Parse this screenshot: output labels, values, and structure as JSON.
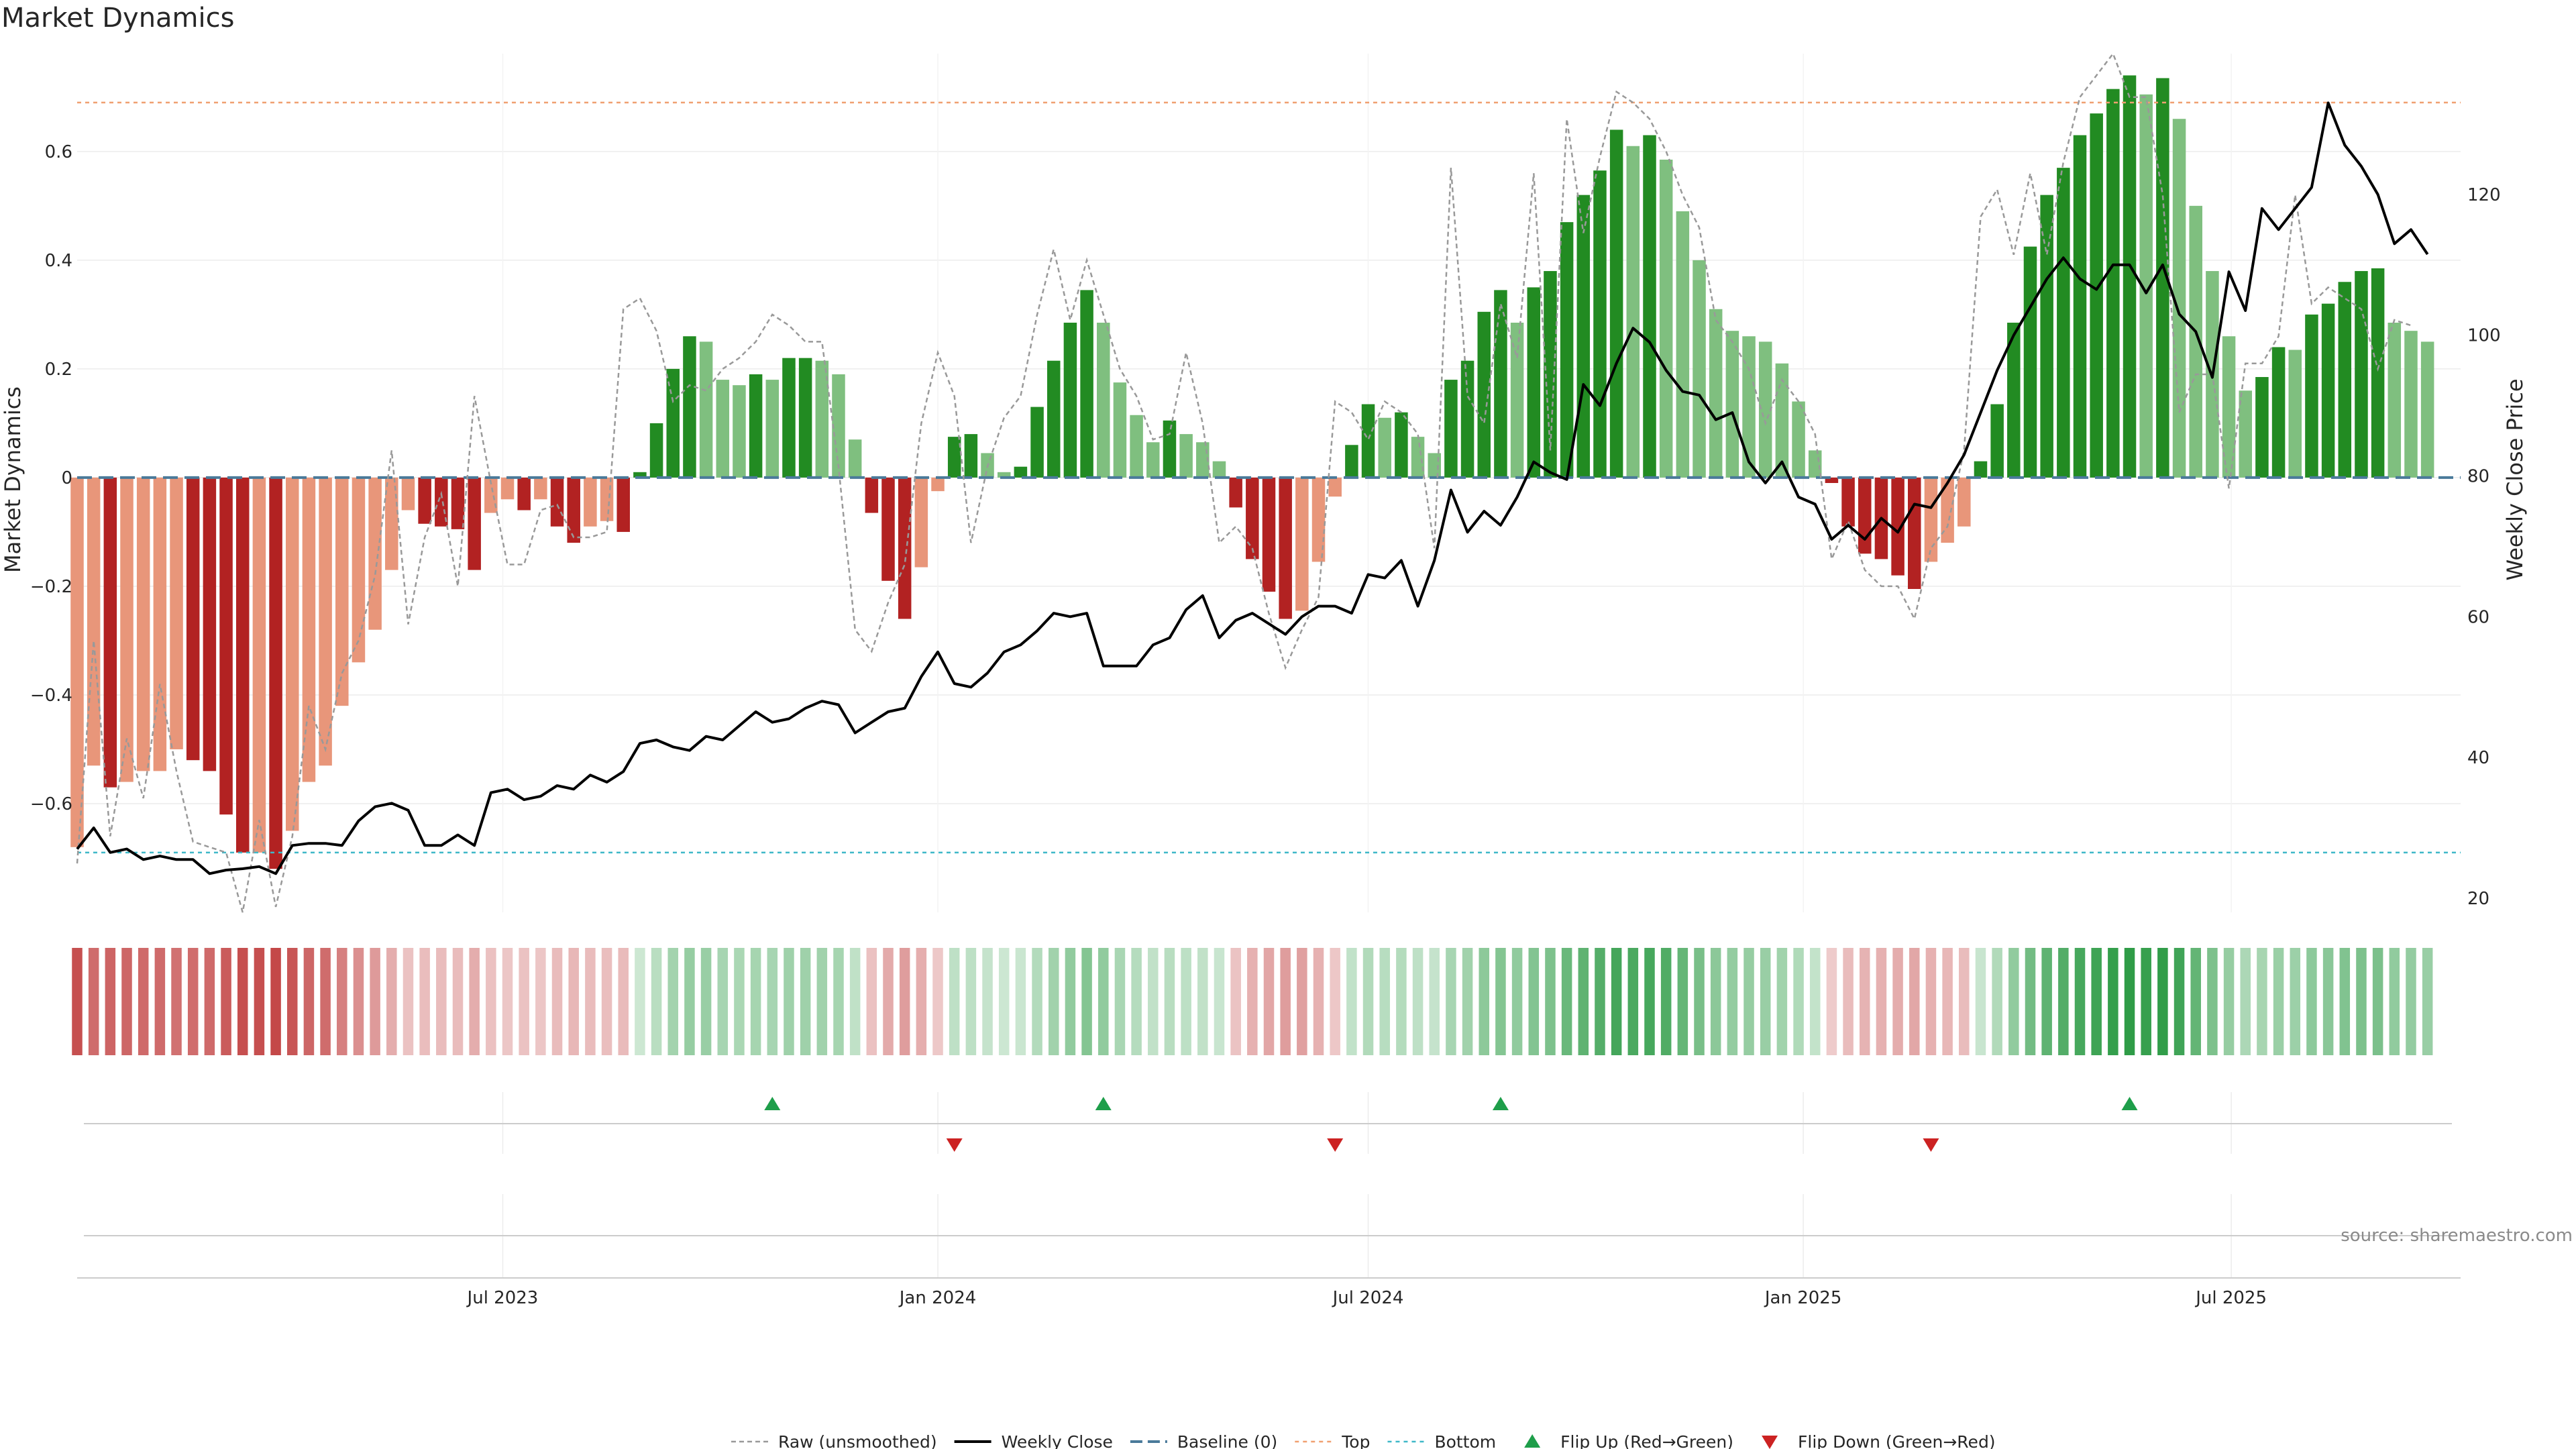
{
  "title": "Market Dynamics",
  "source": "source: sharemaestro.com",
  "colors": {
    "strong_green": "#228b22",
    "light_green": "#7fbf7f",
    "strong_red": "#b22222",
    "light_red": "#e8967a",
    "raw": "#999999",
    "close": "#000000",
    "baseline": "#4a7a9a",
    "top": "#f0a070",
    "bottom": "#3fb8c8",
    "flip_up": "#1e9e4a",
    "flip_down": "#cc2222"
  },
  "chart_data": {
    "type": "bar",
    "title": "Market Dynamics",
    "ylabel_left": "Market Dynamics",
    "ylabel_right": "Weekly Close Price",
    "x_start": "2023-01-02",
    "x_end": "2025-10-06",
    "ylim_left": [
      -0.8,
      0.78
    ],
    "ylim_right": [
      18,
      140
    ],
    "yticks_left": [
      -0.6,
      -0.4,
      -0.2,
      0,
      0.2,
      0.4,
      0.6
    ],
    "yticks_left_labels": [
      "−0.6",
      "−0.4",
      "−0.2",
      "0",
      "0.2",
      "0.4",
      "0.6"
    ],
    "yticks_right": [
      20,
      40,
      60,
      80,
      100,
      120
    ],
    "xticks": [
      {
        "date": "2023-07-01",
        "label": "Jul 2023"
      },
      {
        "date": "2024-01-01",
        "label": "Jan 2024"
      },
      {
        "date": "2024-07-01",
        "label": "Jul 2024"
      },
      {
        "date": "2025-01-01",
        "label": "Jan 2025"
      },
      {
        "date": "2025-07-01",
        "label": "Jul 2025"
      }
    ],
    "top_level": 0.69,
    "bottom_level": -0.69,
    "bar_values": [
      -0.68,
      -0.53,
      -0.57,
      -0.56,
      -0.54,
      -0.54,
      -0.5,
      -0.52,
      -0.54,
      -0.62,
      -0.69,
      -0.69,
      -0.72,
      -0.65,
      -0.56,
      -0.53,
      -0.42,
      -0.34,
      -0.28,
      -0.17,
      -0.06,
      -0.085,
      -0.09,
      -0.095,
      -0.17,
      -0.065,
      -0.04,
      -0.06,
      -0.04,
      -0.09,
      -0.12,
      -0.09,
      -0.08,
      -0.1,
      0.01,
      0.1,
      0.2,
      0.26,
      0.25,
      0.18,
      0.17,
      0.19,
      0.18,
      0.22,
      0.22,
      0.215,
      0.19,
      0.07,
      -0.065,
      -0.19,
      -0.26,
      -0.165,
      -0.025,
      0.075,
      0.08,
      0.045,
      0.01,
      0.02,
      0.13,
      0.215,
      0.285,
      0.345,
      0.285,
      0.175,
      0.115,
      0.065,
      0.105,
      0.08,
      0.065,
      0.03,
      -0.055,
      -0.15,
      -0.21,
      -0.26,
      -0.245,
      -0.155,
      -0.035,
      0.06,
      0.135,
      0.11,
      0.12,
      0.075,
      0.045,
      0.18,
      0.215,
      0.305,
      0.345,
      0.285,
      0.35,
      0.38,
      0.47,
      0.52,
      0.565,
      0.64,
      0.61,
      0.63,
      0.585,
      0.49,
      0.4,
      0.31,
      0.27,
      0.26,
      0.25,
      0.21,
      0.14,
      0.05,
      -0.01,
      -0.09,
      -0.14,
      -0.15,
      -0.18,
      -0.205,
      -0.155,
      -0.12,
      -0.09,
      0.03,
      0.135,
      0.285,
      0.425,
      0.52,
      0.57,
      0.63,
      0.67,
      0.715,
      0.74,
      0.705,
      0.735,
      0.66,
      0.5,
      0.38,
      0.26,
      0.16,
      0.185,
      0.24,
      0.235,
      0.3,
      0.32,
      0.36,
      0.38,
      0.385,
      0.285,
      0.27,
      0.25
    ],
    "raw_values": [
      -0.71,
      -0.3,
      -0.66,
      -0.48,
      -0.59,
      -0.38,
      -0.54,
      -0.67,
      -0.68,
      -0.69,
      -0.8,
      -0.63,
      -0.79,
      -0.66,
      -0.42,
      -0.5,
      -0.36,
      -0.3,
      -0.18,
      0.05,
      -0.27,
      -0.11,
      -0.03,
      -0.2,
      0.15,
      -0.01,
      -0.16,
      -0.16,
      -0.06,
      -0.05,
      -0.11,
      -0.11,
      -0.1,
      0.31,
      0.33,
      0.27,
      0.14,
      0.17,
      0.16,
      0.2,
      0.22,
      0.25,
      0.3,
      0.28,
      0.25,
      0.25,
      0.02,
      -0.28,
      -0.32,
      -0.23,
      -0.16,
      0.1,
      0.23,
      0.15,
      -0.12,
      0.02,
      0.11,
      0.15,
      0.3,
      0.42,
      0.29,
      0.4,
      0.3,
      0.2,
      0.15,
      0.07,
      0.08,
      0.23,
      0.1,
      -0.12,
      -0.09,
      -0.13,
      -0.25,
      -0.35,
      -0.28,
      -0.22,
      0.14,
      0.12,
      0.07,
      0.14,
      0.12,
      0.08,
      -0.13,
      0.57,
      0.15,
      0.1,
      0.32,
      0.22,
      0.56,
      0.05,
      0.66,
      0.45,
      0.59,
      0.71,
      0.69,
      0.66,
      0.6,
      0.52,
      0.46,
      0.29,
      0.25,
      0.2,
      0.1,
      0.18,
      0.14,
      0.08,
      -0.15,
      -0.08,
      -0.17,
      -0.2,
      -0.2,
      -0.26,
      -0.13,
      -0.09,
      0.05,
      0.48,
      0.53,
      0.41,
      0.56,
      0.41,
      0.58,
      0.7,
      0.74,
      0.78,
      0.7,
      0.7,
      0.52,
      0.12,
      0.19,
      0.19,
      -0.02,
      0.21,
      0.21,
      0.26,
      0.52,
      0.32,
      0.35,
      0.33,
      0.31,
      0.2,
      0.29,
      0.28
    ],
    "close_values": [
      27,
      30,
      26.5,
      27,
      25.5,
      26,
      25.5,
      25.5,
      23.5,
      24,
      24.2,
      24.5,
      23.5,
      27.5,
      27.8,
      27.8,
      27.5,
      31,
      33,
      33.5,
      32.5,
      27.5,
      27.5,
      29,
      27.5,
      35,
      35.5,
      34,
      34.5,
      36,
      35.5,
      37.5,
      36.5,
      38,
      42,
      42.5,
      41.5,
      41,
      43,
      42.5,
      44.5,
      46.5,
      45,
      45.5,
      47,
      48,
      47.5,
      43.5,
      45,
      46.5,
      47,
      51.5,
      55,
      50.5,
      50,
      52,
      55,
      56,
      58,
      60.5,
      60,
      60.5,
      53,
      53,
      53,
      56,
      57,
      61,
      63,
      57,
      59.5,
      60.5,
      59,
      57.5,
      60,
      61.5,
      61.5,
      60.5,
      66,
      65.5,
      68,
      61.5,
      68,
      78,
      72,
      75,
      73,
      77,
      82,
      80.5,
      79.5,
      93,
      90,
      96,
      101,
      99,
      95,
      92,
      91.5,
      88,
      89,
      82,
      79,
      82,
      77,
      76,
      71,
      73,
      71,
      74,
      72,
      76,
      75.5,
      79,
      83,
      89,
      95,
      100,
      104,
      108,
      111,
      108,
      106.5,
      110,
      110,
      106,
      110,
      103,
      100.5,
      94,
      109,
      103.5,
      118,
      115,
      118,
      121,
      133,
      127,
      124,
      120,
      113,
      115,
      111.5
    ],
    "flip_up_dates": [
      "2023-10-23",
      "2024-03-11",
      "2024-08-26",
      "2025-05-19"
    ],
    "flip_down_dates": [
      "2024-01-08",
      "2024-06-17",
      "2025-02-24"
    ],
    "legend": [
      "Raw (unsmoothed)",
      "Weekly Close",
      "Baseline (0)",
      "Top",
      "Bottom",
      "Flip Up (Red→Green)",
      "Flip Down (Green→Red)"
    ],
    "grid": true,
    "legend_position": "bottom-center"
  }
}
